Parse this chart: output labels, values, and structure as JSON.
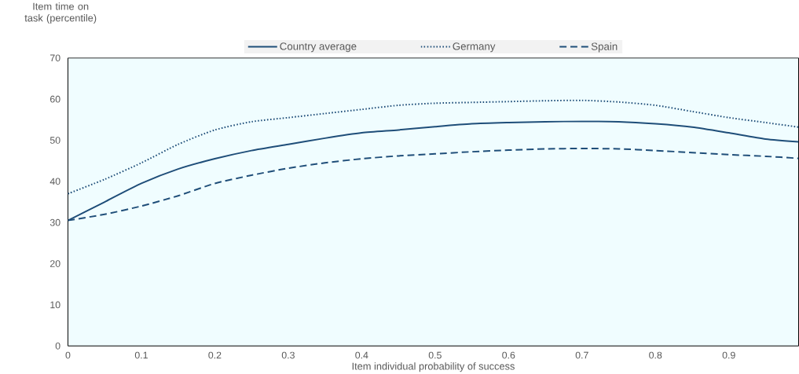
{
  "chart_data": {
    "type": "line",
    "xlabel": "Item individual probability of success",
    "ylabel": "Item time on task (percentile)",
    "x": [
      0,
      0.05,
      0.1,
      0.15,
      0.2,
      0.25,
      0.3,
      0.35,
      0.4,
      0.45,
      0.5,
      0.55,
      0.6,
      0.65,
      0.7,
      0.75,
      0.8,
      0.85,
      0.9,
      0.95,
      0.995
    ],
    "series": [
      {
        "name": "Country average",
        "color": "#1f4e79",
        "line_style": "solid",
        "values": [
          30.5,
          35,
          39.5,
          43,
          45.5,
          47.5,
          49,
          50.5,
          51.8,
          52.5,
          53.3,
          54,
          54.3,
          54.5,
          54.6,
          54.5,
          54,
          53.2,
          51.8,
          50.3,
          49.6
        ]
      },
      {
        "name": "Germany",
        "color": "#1f4e79",
        "line_style": "dotted",
        "values": [
          37,
          40.5,
          44.5,
          49,
          52.5,
          54.5,
          55.5,
          56.5,
          57.5,
          58.5,
          59,
          59.2,
          59.4,
          59.6,
          59.7,
          59.3,
          58.5,
          57,
          55.5,
          54.3,
          53.2
        ]
      },
      {
        "name": "Spain",
        "color": "#1f4e79",
        "line_style": "dashed",
        "values": [
          30.5,
          32,
          34,
          36.5,
          39.5,
          41.5,
          43.2,
          44.5,
          45.5,
          46.2,
          46.7,
          47.2,
          47.6,
          47.9,
          48,
          47.9,
          47.5,
          47,
          46.5,
          46.1,
          45.6
        ]
      }
    ],
    "xlim": [
      0,
      0.995
    ],
    "ylim": [
      0,
      70
    ],
    "xticks": [
      0,
      0.1,
      0.2,
      0.3,
      0.4,
      0.5,
      0.6,
      0.7,
      0.8,
      0.9
    ],
    "yticks": [
      0,
      10,
      20,
      30,
      40,
      50,
      60,
      70
    ],
    "grid": false,
    "legend": "top",
    "marker": "none"
  }
}
